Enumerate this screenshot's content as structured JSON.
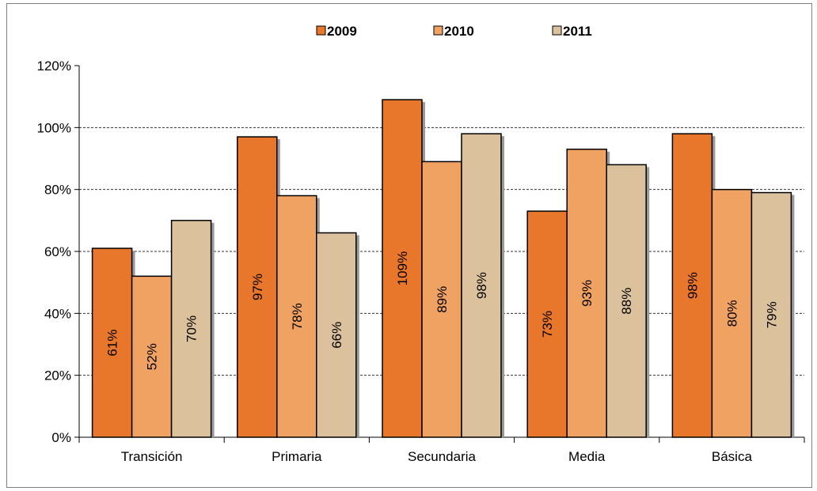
{
  "chart_data": {
    "type": "bar",
    "categories": [
      "Transición",
      "Primaria",
      "Secundaria",
      "Media",
      "Básica"
    ],
    "series": [
      {
        "name": "2009",
        "color": "#e8762b",
        "values": [
          61,
          97,
          109,
          73,
          98
        ],
        "labels": [
          "61%",
          "97%",
          "109%",
          "73%",
          "98%"
        ]
      },
      {
        "name": "2010",
        "color": "#f0a263",
        "values": [
          52,
          78,
          89,
          93,
          80
        ],
        "labels": [
          "52%",
          "78%",
          "89%",
          "93%",
          "80%"
        ]
      },
      {
        "name": "2011",
        "color": "#dcc29c",
        "values": [
          70,
          66,
          98,
          88,
          79
        ],
        "labels": [
          "70%",
          "66%",
          "98%",
          "88%",
          "79%"
        ]
      }
    ],
    "ylim": [
      0,
      120
    ],
    "yticks": [
      0,
      20,
      40,
      60,
      80,
      100,
      120
    ],
    "ytick_labels": [
      "0%",
      "20%",
      "40%",
      "60%",
      "80%",
      "100%",
      "120%"
    ],
    "grid": true,
    "legend": "top-center",
    "title": "",
    "xlabel": "",
    "ylabel": ""
  }
}
